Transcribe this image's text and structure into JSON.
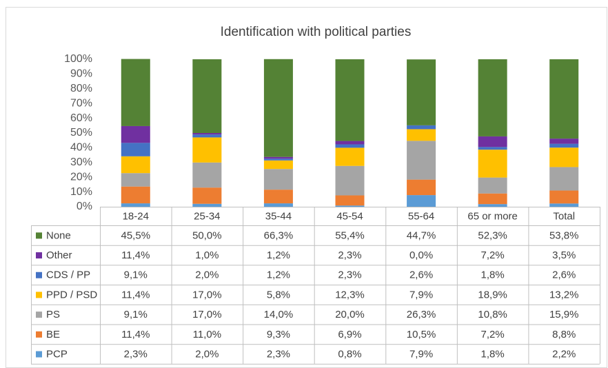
{
  "chart_data": {
    "type": "bar",
    "stacked": true,
    "title": "Identification with political parties",
    "categories": [
      "18-24",
      "25-34",
      "35-44",
      "45-54",
      "55-64",
      "65 or more",
      "Total"
    ],
    "ylim": [
      0,
      100
    ],
    "yticks": [
      {
        "value": 0,
        "label": "0%"
      },
      {
        "value": 10,
        "label": "10%"
      },
      {
        "value": 20,
        "label": "20%"
      },
      {
        "value": 30,
        "label": "30%"
      },
      {
        "value": 40,
        "label": "40%"
      },
      {
        "value": 50,
        "label": "50%"
      },
      {
        "value": 60,
        "label": "60%"
      },
      {
        "value": 70,
        "label": "70%"
      },
      {
        "value": 80,
        "label": "80%"
      },
      {
        "value": 90,
        "label": "90%"
      },
      {
        "value": 100,
        "label": "100%"
      }
    ],
    "series": [
      {
        "name": "None",
        "color": "#548235",
        "values": [
          45.5,
          50.0,
          66.3,
          55.4,
          44.7,
          52.3,
          53.8
        ],
        "value_labels": [
          "45,5%",
          "50,0%",
          "66,3%",
          "55,4%",
          "44,7%",
          "52,3%",
          "53,8%"
        ]
      },
      {
        "name": "Other",
        "color": "#7030a0",
        "values": [
          11.4,
          1.0,
          1.2,
          2.3,
          0.0,
          7.2,
          3.5
        ],
        "value_labels": [
          "11,4%",
          "1,0%",
          "1,2%",
          "2,3%",
          "0,0%",
          "7,2%",
          "3,5%"
        ]
      },
      {
        "name": "CDS / PP",
        "color": "#4472c4",
        "values": [
          9.1,
          2.0,
          1.2,
          2.3,
          2.6,
          1.8,
          2.6
        ],
        "value_labels": [
          "9,1%",
          "2,0%",
          "1,2%",
          "2,3%",
          "2,6%",
          "1,8%",
          "2,6%"
        ]
      },
      {
        "name": "PPD / PSD",
        "color": "#ffc000",
        "values": [
          11.4,
          17.0,
          5.8,
          12.3,
          7.9,
          18.9,
          13.2
        ],
        "value_labels": [
          "11,4%",
          "17,0%",
          "5,8%",
          "12,3%",
          "7,9%",
          "18,9%",
          "13,2%"
        ]
      },
      {
        "name": "PS",
        "color": "#a5a5a5",
        "values": [
          9.1,
          17.0,
          14.0,
          20.0,
          26.3,
          10.8,
          15.9
        ],
        "value_labels": [
          "9,1%",
          "17,0%",
          "14,0%",
          "20,0%",
          "26,3%",
          "10,8%",
          "15,9%"
        ]
      },
      {
        "name": "BE",
        "color": "#ed7d31",
        "values": [
          11.4,
          11.0,
          9.3,
          6.9,
          10.5,
          7.2,
          8.8
        ],
        "value_labels": [
          "11,4%",
          "11,0%",
          "9,3%",
          "6,9%",
          "10,5%",
          "7,2%",
          "8,8%"
        ]
      },
      {
        "name": "PCP",
        "color": "#5b9bd5",
        "values": [
          2.3,
          2.0,
          2.3,
          0.8,
          7.9,
          1.8,
          2.2
        ],
        "value_labels": [
          "2,3%",
          "2,0%",
          "2,3%",
          "0,8%",
          "7,9%",
          "1,8%",
          "2,2%"
        ]
      }
    ]
  }
}
